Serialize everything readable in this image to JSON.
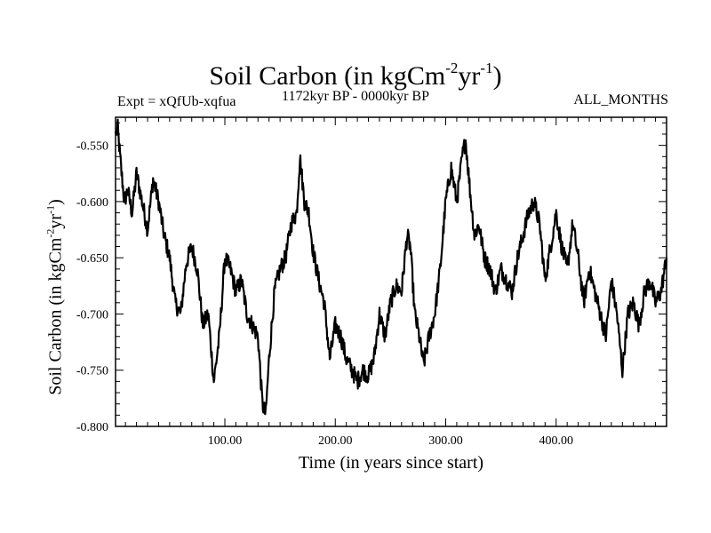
{
  "header": {
    "title_prefix": "Soil Carbon (in kgCm",
    "title_sup1": "-2",
    "title_mid": "yr",
    "title_sup2": "-1",
    "title_suffix": ")",
    "subtitle": "1172kyr BP - 0000kyr BP",
    "experiment": "Expt = xQfUb-xqfua",
    "months": "ALL_MONTHS"
  },
  "axes": {
    "xlabel": "Time (in years since start)",
    "ylabel_prefix": "Soil Carbon (in kgCm",
    "ylabel_sup1": "-2",
    "ylabel_mid": "yr",
    "ylabel_sup2": "-1",
    "ylabel_suffix": ")"
  },
  "chart_data": {
    "type": "line",
    "title": "Soil Carbon (in kgCm-2yr-1)",
    "subtitle": "1172kyr BP - 0000kyr BP",
    "xlabel": "Time (in years since start)",
    "ylabel": "Soil Carbon (in kgCm-2yr-1)",
    "xlim": [
      1,
      500
    ],
    "ylim": [
      -0.8,
      -0.525
    ],
    "xticks": [
      100,
      200,
      300,
      400
    ],
    "xtick_labels": [
      "100.00",
      "200.00",
      "300.00",
      "400.00"
    ],
    "yticks": [
      -0.8,
      -0.75,
      -0.7,
      -0.65,
      -0.6,
      -0.55
    ],
    "ytick_labels": [
      "-0.800",
      "-0.750",
      "-0.700",
      "-0.650",
      "-0.600",
      "-0.550"
    ],
    "series": [
      {
        "name": "Soil Carbon",
        "x": [
          1,
          3,
          6,
          9,
          12,
          16,
          20,
          25,
          30,
          35,
          40,
          45,
          50,
          55,
          60,
          65,
          70,
          75,
          80,
          85,
          90,
          95,
          100,
          105,
          110,
          115,
          120,
          125,
          130,
          134,
          137,
          140,
          145,
          150,
          155,
          160,
          165,
          168,
          172,
          176,
          180,
          185,
          190,
          195,
          200,
          205,
          210,
          215,
          220,
          225,
          230,
          235,
          240,
          245,
          250,
          255,
          260,
          265,
          268,
          272,
          276,
          280,
          285,
          290,
          295,
          300,
          305,
          310,
          315,
          318,
          322,
          326,
          330,
          335,
          340,
          345,
          350,
          355,
          360,
          365,
          370,
          375,
          380,
          385,
          390,
          395,
          400,
          405,
          410,
          415,
          420,
          425,
          430,
          435,
          440,
          445,
          450,
          455,
          460,
          465,
          470,
          475,
          480,
          485,
          490,
          495,
          500
        ],
        "values": [
          -0.54,
          -0.535,
          -0.57,
          -0.6,
          -0.59,
          -0.61,
          -0.575,
          -0.6,
          -0.625,
          -0.58,
          -0.6,
          -0.63,
          -0.65,
          -0.69,
          -0.7,
          -0.655,
          -0.64,
          -0.66,
          -0.71,
          -0.7,
          -0.76,
          -0.72,
          -0.65,
          -0.66,
          -0.68,
          -0.67,
          -0.7,
          -0.71,
          -0.72,
          -0.78,
          -0.79,
          -0.74,
          -0.68,
          -0.66,
          -0.65,
          -0.62,
          -0.61,
          -0.56,
          -0.6,
          -0.61,
          -0.645,
          -0.67,
          -0.69,
          -0.74,
          -0.71,
          -0.72,
          -0.74,
          -0.75,
          -0.76,
          -0.75,
          -0.755,
          -0.74,
          -0.7,
          -0.72,
          -0.69,
          -0.675,
          -0.68,
          -0.63,
          -0.64,
          -0.7,
          -0.72,
          -0.745,
          -0.72,
          -0.7,
          -0.66,
          -0.6,
          -0.57,
          -0.6,
          -0.56,
          -0.545,
          -0.59,
          -0.63,
          -0.62,
          -0.65,
          -0.66,
          -0.68,
          -0.66,
          -0.67,
          -0.68,
          -0.65,
          -0.63,
          -0.61,
          -0.6,
          -0.62,
          -0.67,
          -0.64,
          -0.61,
          -0.64,
          -0.66,
          -0.62,
          -0.65,
          -0.69,
          -0.66,
          -0.68,
          -0.7,
          -0.72,
          -0.67,
          -0.7,
          -0.75,
          -0.7,
          -0.69,
          -0.71,
          -0.68,
          -0.67,
          -0.69,
          -0.68,
          -0.65
        ]
      }
    ]
  }
}
